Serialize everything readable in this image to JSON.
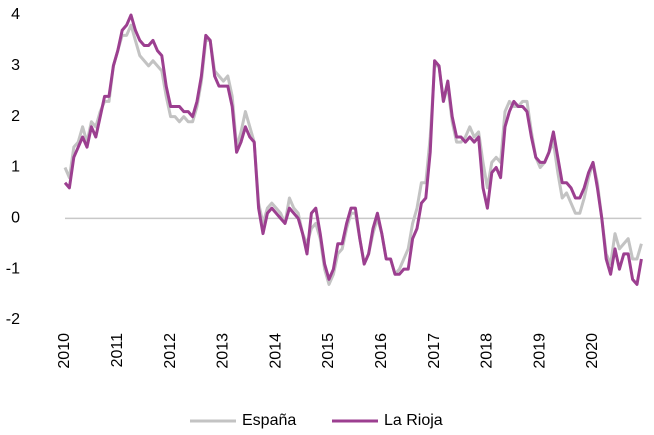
{
  "chart_data": {
    "type": "line",
    "categories": [
      "2010",
      null,
      null,
      null,
      null,
      null,
      null,
      null,
      null,
      null,
      null,
      null,
      "2011",
      null,
      null,
      null,
      null,
      null,
      null,
      null,
      null,
      null,
      null,
      null,
      "2012",
      null,
      null,
      null,
      null,
      null,
      null,
      null,
      null,
      null,
      null,
      null,
      "2013",
      null,
      null,
      null,
      null,
      null,
      null,
      null,
      null,
      null,
      null,
      null,
      "2014",
      null,
      null,
      null,
      null,
      null,
      null,
      null,
      null,
      null,
      null,
      null,
      "2015",
      null,
      null,
      null,
      null,
      null,
      null,
      null,
      null,
      null,
      null,
      null,
      "2016",
      null,
      null,
      null,
      null,
      null,
      null,
      null,
      null,
      null,
      null,
      null,
      "2017",
      null,
      null,
      null,
      null,
      null,
      null,
      null,
      null,
      null,
      null,
      null,
      "2018",
      null,
      null,
      null,
      null,
      null,
      null,
      null,
      null,
      null,
      null,
      null,
      "2019",
      null,
      null,
      null,
      null,
      null,
      null,
      null,
      null,
      null,
      null,
      null,
      "2020",
      null,
      null,
      null,
      null,
      null,
      null,
      null,
      null,
      null,
      null,
      null
    ],
    "series": [
      {
        "name": "España",
        "color": "#c3c3c3",
        "values": [
          1.0,
          0.8,
          1.4,
          1.5,
          1.8,
          1.5,
          1.9,
          1.8,
          2.1,
          2.3,
          2.3,
          3.0,
          3.3,
          3.6,
          3.6,
          3.8,
          3.5,
          3.2,
          3.1,
          3.0,
          3.1,
          3.0,
          2.9,
          2.4,
          2.0,
          2.0,
          1.9,
          2.0,
          1.9,
          1.9,
          2.2,
          2.7,
          3.5,
          3.5,
          2.9,
          2.8,
          2.7,
          2.8,
          2.4,
          1.4,
          1.7,
          2.1,
          1.8,
          1.5,
          0.3,
          -0.1,
          0.2,
          0.3,
          0.2,
          0.1,
          -0.1,
          0.4,
          0.2,
          0.1,
          -0.3,
          -0.5,
          -0.2,
          -0.1,
          -0.4,
          -1.0,
          -1.3,
          -1.1,
          -0.7,
          -0.6,
          -0.2,
          0.1,
          0.1,
          -0.4,
          -0.9,
          -0.7,
          -0.3,
          0.0,
          -0.3,
          -0.8,
          -0.8,
          -1.1,
          -1.0,
          -0.8,
          -0.6,
          -0.1,
          0.2,
          0.7,
          0.7,
          1.6,
          3.0,
          3.0,
          2.3,
          2.6,
          1.9,
          1.5,
          1.5,
          1.6,
          1.8,
          1.6,
          1.7,
          1.1,
          0.6,
          1.1,
          1.2,
          1.1,
          2.1,
          2.3,
          2.2,
          2.2,
          2.3,
          2.3,
          1.7,
          1.2,
          1.0,
          1.1,
          1.3,
          1.5,
          0.9,
          0.4,
          0.5,
          0.3,
          0.1,
          0.1,
          0.4,
          0.8,
          1.1,
          0.7,
          0.0,
          -0.7,
          -0.9,
          -0.3,
          -0.6,
          -0.5,
          -0.4,
          -0.8,
          -0.8,
          -0.5
        ]
      },
      {
        "name": "La Rioja",
        "color": "#9c3f90",
        "values": [
          0.7,
          0.6,
          1.2,
          1.4,
          1.6,
          1.4,
          1.8,
          1.6,
          2.0,
          2.4,
          2.4,
          3.0,
          3.3,
          3.7,
          3.8,
          4.0,
          3.7,
          3.5,
          3.4,
          3.4,
          3.5,
          3.3,
          3.2,
          2.6,
          2.2,
          2.2,
          2.2,
          2.1,
          2.1,
          2.0,
          2.3,
          2.8,
          3.6,
          3.5,
          2.8,
          2.6,
          2.6,
          2.6,
          2.2,
          1.3,
          1.5,
          1.8,
          1.6,
          1.5,
          0.2,
          -0.3,
          0.1,
          0.2,
          0.1,
          0.0,
          -0.1,
          0.2,
          0.1,
          0.0,
          -0.3,
          -0.7,
          0.1,
          0.2,
          -0.3,
          -0.9,
          -1.2,
          -1.0,
          -0.5,
          -0.5,
          -0.1,
          0.2,
          0.2,
          -0.4,
          -0.9,
          -0.7,
          -0.2,
          0.1,
          -0.3,
          -0.8,
          -0.8,
          -1.1,
          -1.1,
          -1.0,
          -1.0,
          -0.4,
          -0.2,
          0.3,
          0.4,
          1.3,
          3.1,
          3.0,
          2.3,
          2.7,
          2.0,
          1.6,
          1.6,
          1.5,
          1.6,
          1.5,
          1.6,
          0.6,
          0.2,
          0.9,
          1.0,
          0.8,
          1.8,
          2.1,
          2.3,
          2.2,
          2.2,
          2.1,
          1.6,
          1.2,
          1.1,
          1.1,
          1.3,
          1.7,
          1.2,
          0.7,
          0.7,
          0.6,
          0.4,
          0.4,
          0.6,
          0.9,
          1.1,
          0.6,
          0.0,
          -0.8,
          -1.1,
          -0.6,
          -1.0,
          -0.7,
          -0.7,
          -1.2,
          -1.3,
          -0.8
        ]
      }
    ],
    "ylim": [
      -2,
      4
    ],
    "yticks": [
      -2,
      -1,
      0,
      1,
      2,
      3,
      4
    ],
    "legend": "bottom"
  }
}
